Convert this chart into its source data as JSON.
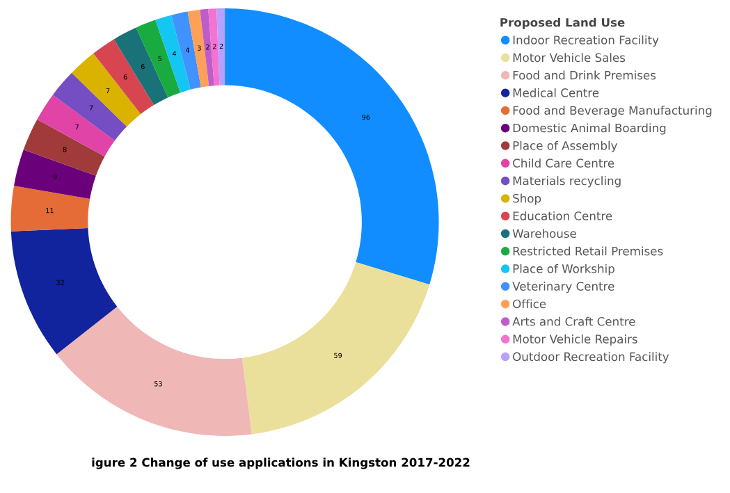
{
  "chart_data": {
    "type": "donut",
    "legend_title": "Proposed Land Use",
    "categories": [
      "Indoor Recreation Facility",
      "Motor Vehicle Sales",
      "Food and Drink Premises",
      "Medical Centre",
      "Food and Beverage Manufacturing",
      "Domestic Animal Boarding",
      "Place of Assembly",
      "Child Care Centre",
      "Materials recycling",
      "Shop",
      "Education Centre",
      "Warehouse",
      "Restricted Retail Premises",
      "Place of Workship",
      "Veterinary Centre",
      "Office",
      "Arts and Craft Centre",
      "Motor Vehicle Repairs",
      "Outdoor Recreation Facility"
    ],
    "values": [
      96,
      59,
      53,
      32,
      11,
      9,
      8,
      7,
      7,
      7,
      6,
      6,
      5,
      4,
      4,
      3,
      2,
      2,
      2
    ],
    "colors": [
      "#118dff",
      "#ebe09b",
      "#f0b7b7",
      "#12239e",
      "#e66c37",
      "#6b007b",
      "#a13b3b",
      "#e044a7",
      "#744ec2",
      "#d9b300",
      "#d64550",
      "#197278",
      "#1aab40",
      "#15c6f4",
      "#4092ff",
      "#ffa058",
      "#be5dc9",
      "#f472d0",
      "#b5a1ff"
    ],
    "data_labels": true,
    "legend": "right",
    "annotations": [
      "igure 2 Change of use applications in Kingston 2017-2022"
    ]
  }
}
